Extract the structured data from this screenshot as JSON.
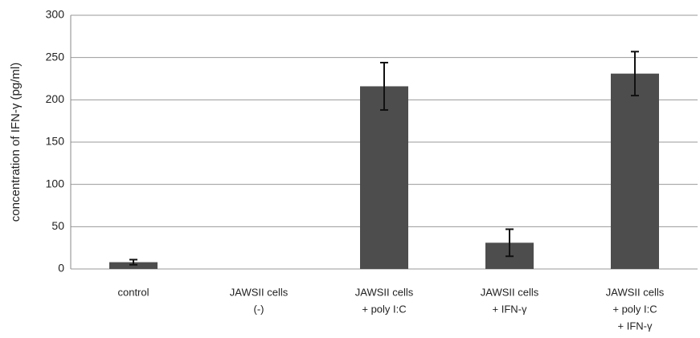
{
  "chart_data": {
    "type": "bar",
    "y_label": "concentration of IFN-γ (pg/ml)",
    "categories": [
      [
        "control"
      ],
      [
        "JAWSII cells",
        "(-)"
      ],
      [
        "JAWSII cells",
        "+ poly I:C"
      ],
      [
        "JAWSII cells",
        "+ IFN-γ"
      ],
      [
        "JAWSII cells",
        "+ poly I:C",
        "+ IFN-γ"
      ]
    ],
    "values": [
      8,
      0,
      216,
      31,
      231
    ],
    "errors": [
      3,
      0,
      28,
      16,
      26
    ],
    "color": "#4d4d4d",
    "ylim": [
      0,
      300
    ],
    "yticks": [
      0,
      50,
      100,
      150,
      200,
      250,
      300
    ],
    "grid": true
  }
}
